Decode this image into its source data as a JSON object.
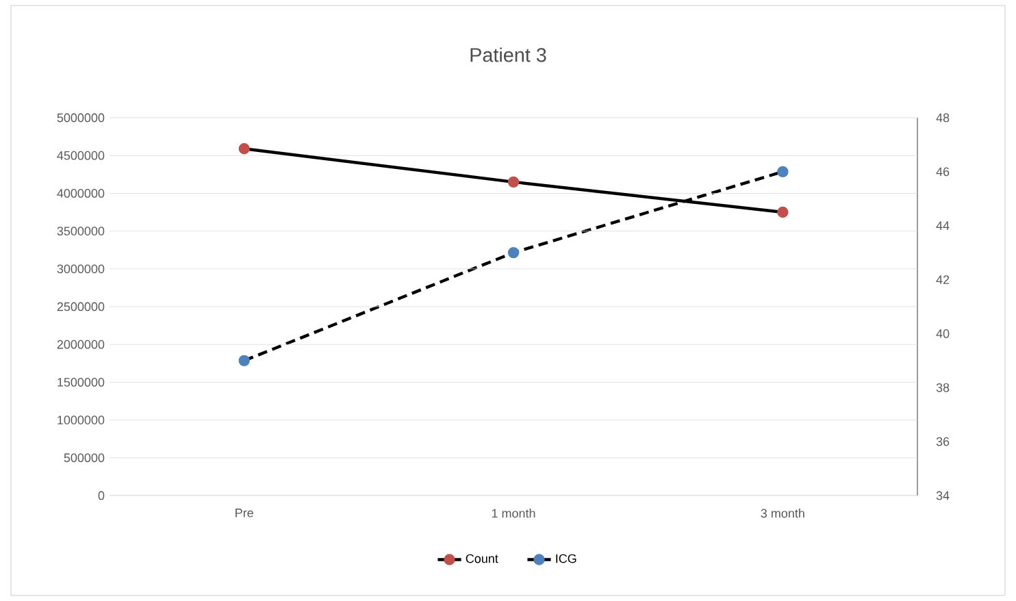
{
  "chart_data": {
    "type": "line",
    "title": "Patient 3",
    "categories": [
      "Pre",
      "1 month",
      "3 month"
    ],
    "series": [
      {
        "name": "Count",
        "color": "#000000",
        "colors": [
          "#c0504d",
          "#c0504d",
          "#c0504d"
        ],
        "values": [
          4590000,
          4150000,
          3750000
        ],
        "line_style": "solid"
      },
      {
        "name": "ICG",
        "color": "#000000",
        "colors": [
          "#4f81bd",
          "#4f81bd",
          "#4f81bd"
        ],
        "values": [
          39,
          43,
          46
        ],
        "axis": "y2",
        "line_style": "dashed"
      }
    ],
    "ylim": [
      0,
      5000000
    ],
    "yticks": [
      0,
      500000,
      1000000,
      1500000,
      2000000,
      2500000,
      3000000,
      3500000,
      4000000,
      4500000,
      5000000
    ],
    "y2lim": [
      34,
      48
    ],
    "y2ticks": [
      34,
      36,
      38,
      40,
      42,
      44,
      46,
      48
    ],
    "grid": "y",
    "legend": "bottom",
    "marker": "circle"
  }
}
